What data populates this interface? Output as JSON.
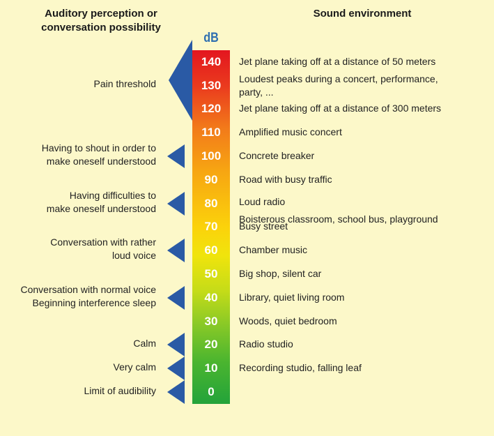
{
  "header": {
    "left": "Auditory perception or\nconversation possibility",
    "right": "Sound environment"
  },
  "unit": "dB",
  "scale": {
    "values": [
      "140",
      "130",
      "120",
      "110",
      "100",
      "90",
      "80",
      "70",
      "60",
      "50",
      "40",
      "30",
      "20",
      "10",
      "0"
    ],
    "colors": {
      "top": "#e3161f",
      "middle": "#fbd20b",
      "bottom": "#23a33a",
      "arrow": "#2a5aa5",
      "background": "#fcf8c9"
    }
  },
  "environment": [
    {
      "level": 140,
      "text": "Jet plane taking off at a distance of 50 meters"
    },
    {
      "level": 130,
      "text": "Loudest peaks during a concert, performance, party, ..."
    },
    {
      "level": 120,
      "text": "Jet plane taking off at a distance of 300 meters"
    },
    {
      "level": 110,
      "text": "Amplified music concert"
    },
    {
      "level": 100,
      "text": "Concrete breaker"
    },
    {
      "level": 90,
      "text": "Road with busy traffic"
    },
    {
      "level": 80,
      "text": "Loud radio"
    },
    {
      "level": 75,
      "text": "Boisterous classroom, school bus, playground"
    },
    {
      "level": 70,
      "text": "Busy street"
    },
    {
      "level": 60,
      "text": "Chamber music"
    },
    {
      "level": 50,
      "text": "Big shop, silent car"
    },
    {
      "level": 40,
      "text": "Library, quiet living room"
    },
    {
      "level": 30,
      "text": "Woods, quiet bedroom"
    },
    {
      "level": 20,
      "text": "Radio studio"
    },
    {
      "level": 10,
      "text": "Recording studio, falling leaf"
    }
  ],
  "perception": [
    {
      "level": 130,
      "text": "Pain threshold"
    },
    {
      "level": 100,
      "text": "Having to shout in order to\nmake oneself understood"
    },
    {
      "level": 80,
      "text": "Having difficulties to\nmake oneself understood"
    },
    {
      "level": 60,
      "text": "Conversation with rather\nloud voice"
    },
    {
      "level": 40,
      "text": "Conversation with normal voice\nBeginning interference sleep"
    },
    {
      "level": 20,
      "text": "Calm"
    },
    {
      "level": 10,
      "text": "Very calm"
    },
    {
      "level": 0,
      "text": "Limit of audibility"
    }
  ]
}
